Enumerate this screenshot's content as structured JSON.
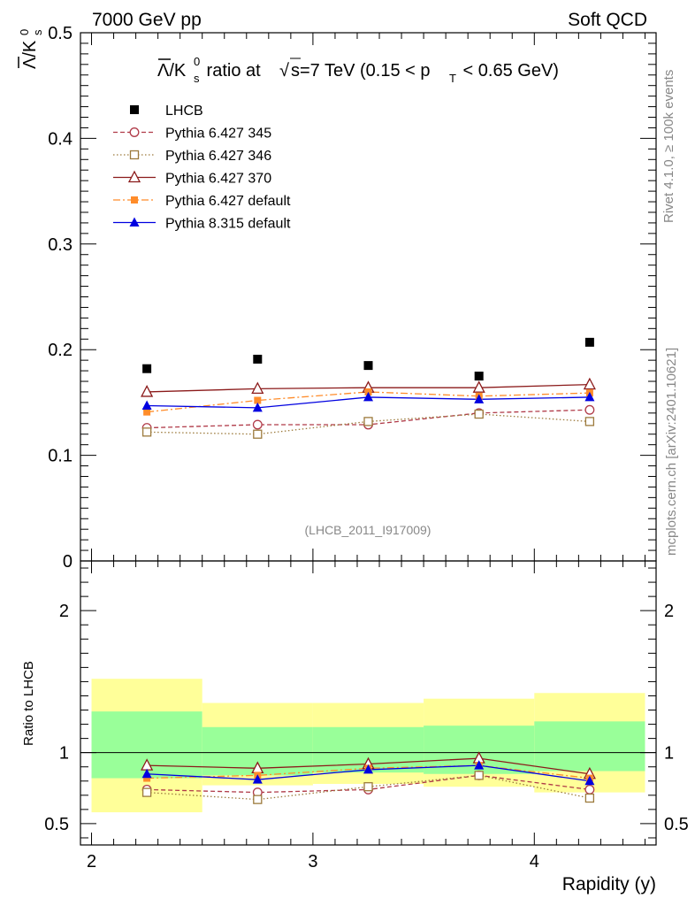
{
  "header": {
    "left": "7000 GeV pp",
    "right": "Soft QCD",
    "title_prefix": "/K",
    "title_rest": " ratio at ",
    "title_energy": "s=7 TeV (0.15 < p",
    "title_sub": "T",
    "title_end": " < 0.65 GeV)"
  },
  "side": {
    "rivet": "Rivet 4.1.0, ≥ 100k events",
    "mcplots": "mcplots.cern.ch [arXiv:2401.10621]"
  },
  "analysis_id": "(LHCB_2011_I917009)",
  "chart_data": [
    {
      "type": "scatter",
      "panel": "main",
      "ylabel": "Λ̄/K_s^0",
      "ylim": [
        0,
        0.5
      ],
      "yticks": [
        0,
        0.1,
        0.2,
        0.3,
        0.4,
        0.5
      ],
      "ytick_labels": [
        "0",
        "0.1",
        "0.2",
        "0.3",
        "0.4",
        "0.5"
      ],
      "x": [
        2.25,
        2.75,
        3.25,
        3.75,
        4.25
      ],
      "series": [
        {
          "name": "LHCB",
          "values": [
            0.182,
            0.191,
            0.185,
            0.175,
            0.207
          ],
          "color": "#000000",
          "marker": "square",
          "dash": "none"
        },
        {
          "name": "Pythia 6.427 345",
          "values": [
            0.126,
            0.129,
            0.129,
            0.14,
            0.143
          ],
          "color": "#b03a48",
          "marker": "circle-open",
          "dash": "dashed"
        },
        {
          "name": "Pythia 6.427 346",
          "values": [
            0.122,
            0.12,
            0.132,
            0.139,
            0.132
          ],
          "color": "#9c7a3c",
          "marker": "square-open",
          "dash": "dotted"
        },
        {
          "name": "Pythia 6.427 370",
          "values": [
            0.16,
            0.163,
            0.164,
            0.164,
            0.167
          ],
          "color": "#8b1a1a",
          "marker": "triangle-open",
          "dash": "solid"
        },
        {
          "name": "Pythia 6.427 default",
          "values": [
            0.141,
            0.152,
            0.16,
            0.156,
            0.159
          ],
          "color": "#ff8c2a",
          "marker": "square-small",
          "dash": "dashdot"
        },
        {
          "name": "Pythia 8.315 default",
          "values": [
            0.147,
            0.145,
            0.155,
            0.153,
            0.155
          ],
          "color": "#0000e0",
          "marker": "triangle",
          "dash": "solid"
        }
      ]
    },
    {
      "type": "line",
      "panel": "ratio",
      "ylabel": "Ratio to LHCB",
      "xlabel": "Rapidity (y)",
      "xlim": [
        1.95,
        4.55
      ],
      "xticks": [
        2,
        3,
        4
      ],
      "xtick_labels": [
        "2",
        "3",
        "4"
      ],
      "ylim": [
        0.35,
        2.35
      ],
      "yticks": [
        0.5,
        1,
        2
      ],
      "ytick_labels": [
        "0.5",
        "1",
        "2"
      ],
      "bins": [
        [
          2.0,
          2.5
        ],
        [
          2.5,
          3.0
        ],
        [
          3.0,
          3.5
        ],
        [
          3.5,
          4.0
        ],
        [
          4.0,
          4.5
        ]
      ],
      "band_inner": [
        [
          0.82,
          1.29
        ],
        [
          0.84,
          1.18
        ],
        [
          0.86,
          1.18
        ],
        [
          0.85,
          1.19
        ],
        [
          0.87,
          1.22
        ]
      ],
      "band_outer": [
        [
          0.58,
          1.52
        ],
        [
          0.77,
          1.35
        ],
        [
          0.78,
          1.35
        ],
        [
          0.76,
          1.38
        ],
        [
          0.72,
          1.42
        ]
      ],
      "x": [
        2.25,
        2.75,
        3.25,
        3.75,
        4.25
      ],
      "series": [
        {
          "name": "Pythia 6.427 345",
          "values": [
            0.74,
            0.72,
            0.74,
            0.84,
            0.74
          ],
          "color": "#b03a48",
          "marker": "circle-open",
          "dash": "dashed"
        },
        {
          "name": "Pythia 6.427 346",
          "values": [
            0.72,
            0.67,
            0.76,
            0.84,
            0.68
          ],
          "color": "#9c7a3c",
          "marker": "square-open",
          "dash": "dotted"
        },
        {
          "name": "Pythia 6.427 370",
          "values": [
            0.91,
            0.89,
            0.92,
            0.96,
            0.85
          ],
          "color": "#8b1a1a",
          "marker": "triangle-open",
          "dash": "solid"
        },
        {
          "name": "Pythia 6.427 default",
          "values": [
            0.82,
            0.84,
            0.89,
            0.91,
            0.82
          ],
          "color": "#ff8c2a",
          "marker": "square-small",
          "dash": "dashdot"
        },
        {
          "name": "Pythia 8.315 default",
          "values": [
            0.85,
            0.81,
            0.88,
            0.91,
            0.8
          ],
          "color": "#0000e0",
          "marker": "triangle",
          "dash": "solid"
        }
      ]
    }
  ]
}
